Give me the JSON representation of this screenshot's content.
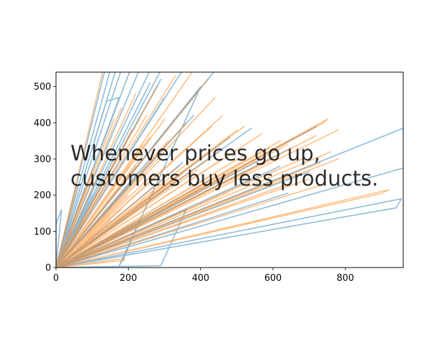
{
  "chart_data": {
    "type": "line",
    "title": "",
    "xlabel": "",
    "ylabel": "",
    "xlim": [
      0,
      960
    ],
    "ylim": [
      0,
      540
    ],
    "x_ticks": [
      0,
      200,
      400,
      600,
      800
    ],
    "y_ticks": [
      0,
      100,
      200,
      300,
      400,
      500
    ],
    "grid": false,
    "annotation": {
      "lines": [
        "Whenever prices go up,",
        "customers buy less products."
      ],
      "x": 40,
      "y": 300
    },
    "series": [
      {
        "color": "#1f77b4",
        "opacity": 0.5,
        "values": [
          [
            0,
            0
          ],
          [
            135,
            545
          ],
          [
            0,
            0
          ],
          [
            150,
            545
          ],
          [
            0,
            0
          ],
          [
            165,
            545
          ],
          [
            0,
            0
          ],
          [
            180,
            545
          ],
          [
            0,
            0
          ],
          [
            205,
            545
          ],
          [
            0,
            0
          ],
          [
            230,
            545
          ],
          [
            0,
            0
          ],
          [
            260,
            545
          ],
          [
            0,
            0
          ],
          [
            290,
            545
          ],
          [
            0,
            0
          ],
          [
            350,
            545
          ],
          [
            0,
            0
          ],
          [
            440,
            545
          ],
          [
            0,
            0
          ],
          [
            960,
            385
          ],
          [
            0,
            0
          ],
          [
            960,
            275
          ],
          [
            0,
            0
          ],
          [
            940,
            165
          ],
          [
            955,
            190
          ],
          [
            0,
            0
          ],
          [
            640,
            205
          ],
          [
            0,
            0
          ],
          [
            700,
            265
          ],
          [
            0,
            0
          ],
          [
            720,
            390
          ],
          [
            0,
            0
          ],
          [
            540,
            385
          ],
          [
            0,
            0
          ],
          [
            480,
            360
          ],
          [
            0,
            0
          ],
          [
            300,
            330
          ],
          [
            0,
            0
          ],
          [
            260,
            300
          ],
          [
            0,
            0
          ],
          [
            220,
            250
          ],
          [
            0,
            0
          ],
          [
            500,
            200
          ],
          [
            0,
            0
          ],
          [
            600,
            240
          ],
          [
            0,
            0
          ],
          [
            420,
            300
          ],
          [
            0,
            0
          ],
          [
            650,
            330
          ],
          [
            0,
            0
          ],
          [
            380,
            420
          ],
          [
            0,
            0
          ],
          [
            300,
            470
          ],
          [
            0,
            0
          ],
          [
            260,
            510
          ],
          [
            0,
            0
          ],
          [
            230,
            410
          ],
          [
            0,
            0
          ],
          [
            140,
            460
          ],
          [
            175,
            470
          ],
          [
            0,
            0
          ],
          [
            290,
            520
          ],
          [
            0,
            0
          ],
          [
            400,
            500
          ],
          [
            175,
            5
          ],
          [
            190,
            30
          ],
          [
            230,
            130
          ],
          [
            0,
            0
          ],
          [
            0,
            0
          ],
          [
            290,
            5
          ],
          [
            360,
            160
          ],
          [
            0,
            0
          ],
          [
            0,
            120
          ],
          [
            15,
            160
          ],
          [
            0,
            0
          ],
          [
            100,
            200
          ],
          [
            0,
            0
          ],
          [
            60,
            130
          ],
          [
            0,
            0
          ],
          [
            430,
            245
          ],
          [
            0,
            0
          ],
          [
            300,
            215
          ],
          [
            0,
            0
          ],
          [
            520,
            265
          ],
          [
            0,
            0
          ],
          [
            560,
            295
          ],
          [
            0,
            0
          ],
          [
            620,
            280
          ],
          [
            0,
            0
          ],
          [
            350,
            290
          ],
          [
            0,
            0
          ],
          [
            180,
            300
          ],
          [
            0,
            0
          ],
          [
            120,
            260
          ],
          [
            0,
            0
          ],
          [
            80,
            220
          ],
          [
            0,
            0
          ],
          [
            0,
            0
          ],
          [
            130,
            2
          ],
          [
            0,
            0
          ]
        ]
      },
      {
        "color": "#ff7f0e",
        "opacity": 0.5,
        "values": [
          [
            0,
            0
          ],
          [
            130,
            545
          ],
          [
            0,
            0
          ],
          [
            900,
            205
          ],
          [
            920,
            215
          ],
          [
            0,
            0
          ],
          [
            780,
            380
          ],
          [
            0,
            0
          ],
          [
            740,
            400
          ],
          [
            750,
            410
          ],
          [
            0,
            0
          ],
          [
            760,
            320
          ],
          [
            0,
            0
          ],
          [
            620,
            350
          ],
          [
            0,
            0
          ],
          [
            520,
            390
          ],
          [
            0,
            0
          ],
          [
            460,
            420
          ],
          [
            0,
            0
          ],
          [
            440,
            470
          ],
          [
            0,
            0
          ],
          [
            420,
            520
          ],
          [
            0,
            0
          ],
          [
            380,
            545
          ],
          [
            0,
            0
          ],
          [
            330,
            530
          ],
          [
            0,
            0
          ],
          [
            280,
            500
          ],
          [
            0,
            0
          ],
          [
            220,
            480
          ],
          [
            0,
            0
          ],
          [
            180,
            440
          ],
          [
            0,
            0
          ],
          [
            160,
            410
          ],
          [
            0,
            0
          ],
          [
            210,
            380
          ],
          [
            0,
            0
          ],
          [
            260,
            360
          ],
          [
            0,
            0
          ],
          [
            310,
            350
          ],
          [
            0,
            0
          ],
          [
            360,
            330
          ],
          [
            0,
            0
          ],
          [
            410,
            310
          ],
          [
            0,
            0
          ],
          [
            460,
            300
          ],
          [
            0,
            0
          ],
          [
            510,
            290
          ],
          [
            0,
            0
          ],
          [
            560,
            280
          ],
          [
            0,
            0
          ],
          [
            610,
            270
          ],
          [
            0,
            0
          ],
          [
            660,
            260
          ],
          [
            0,
            0
          ],
          [
            700,
            245
          ],
          [
            0,
            0
          ],
          [
            740,
            230
          ],
          [
            0,
            0
          ],
          [
            640,
            230
          ],
          [
            0,
            0
          ],
          [
            560,
            220
          ],
          [
            0,
            0
          ],
          [
            480,
            210
          ],
          [
            0,
            0
          ],
          [
            400,
            220
          ],
          [
            0,
            0
          ],
          [
            330,
            240
          ],
          [
            0,
            0
          ],
          [
            270,
            260
          ],
          [
            0,
            0
          ],
          [
            220,
            280
          ],
          [
            0,
            0
          ],
          [
            200,
            320
          ],
          [
            0,
            0
          ],
          [
            240,
            340
          ],
          [
            0,
            0
          ],
          [
            290,
            300
          ],
          [
            0,
            0
          ],
          [
            340,
            280
          ],
          [
            0,
            0
          ],
          [
            390,
            270
          ],
          [
            0,
            0
          ],
          [
            440,
            260
          ],
          [
            0,
            0
          ],
          [
            490,
            250
          ],
          [
            0,
            0
          ],
          [
            540,
            240
          ],
          [
            0,
            0
          ],
          [
            590,
            330
          ],
          [
            0,
            0
          ],
          [
            640,
            340
          ],
          [
            0,
            0
          ],
          [
            690,
            350
          ],
          [
            0,
            0
          ],
          [
            720,
            365
          ],
          [
            0,
            0
          ],
          [
            570,
            370
          ],
          [
            0,
            0
          ],
          [
            500,
            380
          ],
          [
            0,
            0
          ],
          [
            430,
            390
          ],
          [
            0,
            0
          ],
          [
            360,
            400
          ],
          [
            0,
            0
          ],
          [
            300,
            410
          ],
          [
            0,
            0
          ],
          [
            250,
            420
          ],
          [
            0,
            0
          ],
          [
            200,
            200
          ],
          [
            0,
            0
          ],
          [
            180,
            160
          ],
          [
            0,
            0
          ],
          [
            150,
            130
          ],
          [
            0,
            0
          ],
          [
            120,
            110
          ],
          [
            0,
            0
          ],
          [
            190,
            20
          ],
          [
            185,
            25
          ],
          [
            0,
            0
          ],
          [
            300,
            230
          ],
          [
            350,
            260
          ],
          [
            0,
            0
          ],
          [
            0,
            0
          ],
          [
            780,
            300
          ],
          [
            0,
            0
          ],
          [
            730,
            290
          ],
          [
            0,
            0
          ],
          [
            680,
            300
          ],
          [
            0,
            0
          ],
          [
            600,
            300
          ],
          [
            0,
            0
          ],
          [
            520,
            310
          ],
          [
            0,
            0
          ],
          [
            450,
            320
          ],
          [
            0,
            0
          ],
          [
            380,
            300
          ],
          [
            0,
            0
          ],
          [
            320,
            290
          ],
          [
            0,
            0
          ],
          [
            240,
            310
          ],
          [
            0,
            0
          ],
          [
            170,
            300
          ],
          [
            0,
            0
          ],
          [
            100,
            270
          ],
          [
            0,
            0
          ],
          [
            60,
            230
          ]
        ]
      }
    ]
  }
}
